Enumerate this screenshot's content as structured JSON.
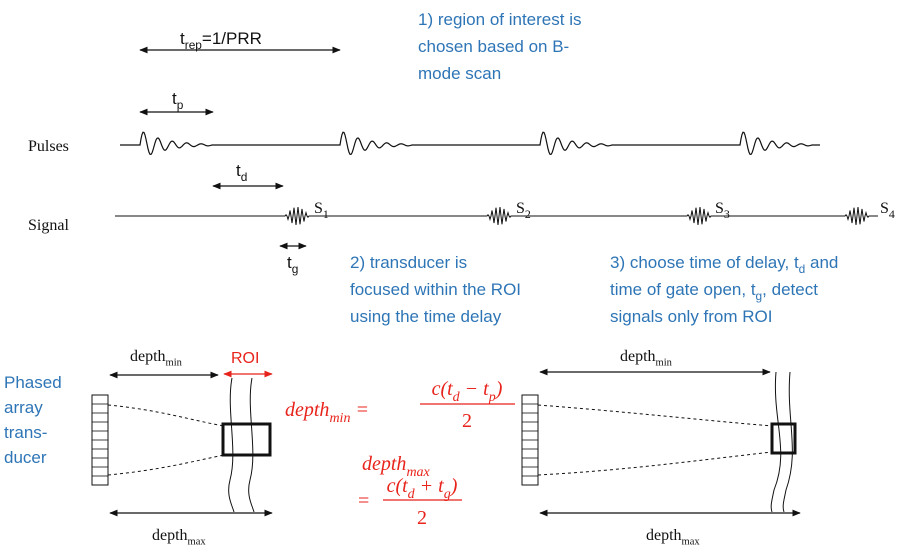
{
  "timing": {
    "t_rep": [
      "t",
      {
        "sub": "rep"
      },
      "=1/PRR"
    ],
    "t_p": [
      "t",
      {
        "sub": "p"
      }
    ],
    "t_d": [
      "t",
      {
        "sub": "d"
      }
    ],
    "t_g": [
      "t",
      {
        "sub": "g"
      }
    ]
  },
  "row_labels": {
    "pulses": "Pulses",
    "signal": "Signal"
  },
  "signals": [
    [
      "S",
      {
        "sub": "1"
      }
    ],
    [
      "S",
      {
        "sub": "2"
      }
    ],
    [
      "S",
      {
        "sub": "3"
      }
    ],
    [
      "S",
      {
        "sub": "4"
      }
    ]
  ],
  "notes": [
    [
      [
        "1) region of interest is"
      ],
      [
        "chosen based on B-"
      ],
      [
        "mode scan"
      ]
    ],
    [
      [
        "2) transducer is"
      ],
      [
        "focused within the ROI"
      ],
      [
        "using the time delay"
      ]
    ],
    [
      [
        "3) choose time of delay, t",
        {
          "sub": "d"
        },
        " and"
      ],
      [
        "time of gate open, t",
        {
          "sub": "g"
        },
        ", detect"
      ],
      [
        "signals only from ROI"
      ]
    ]
  ],
  "transducer_label": [
    "Phased",
    "array",
    "trans-",
    "ducer"
  ],
  "left": {
    "depth_min": [
      "depth",
      {
        "sub": "min"
      }
    ],
    "roi": "ROI",
    "depth_max": [
      "depth",
      {
        "sub": "max"
      }
    ]
  },
  "right": {
    "depth_min": [
      "depth",
      {
        "sub": "min"
      }
    ],
    "depth_max": [
      "depth",
      {
        "sub": "max"
      }
    ]
  },
  "equations": {
    "min": {
      "lhs": [
        "depth",
        {
          "sub": "min"
        },
        " = "
      ],
      "numerator": [
        "c(t",
        {
          "sub": "d"
        },
        " − t",
        {
          "sub": "p"
        },
        ")"
      ],
      "denominator": "2"
    },
    "max": {
      "lhs": [
        "depth",
        {
          "sub": "max"
        }
      ],
      "eq": "=",
      "numerator": [
        "c(t",
        {
          "sub": "d"
        },
        " + t",
        {
          "sub": "g"
        },
        ")"
      ],
      "denominator": "2"
    }
  }
}
